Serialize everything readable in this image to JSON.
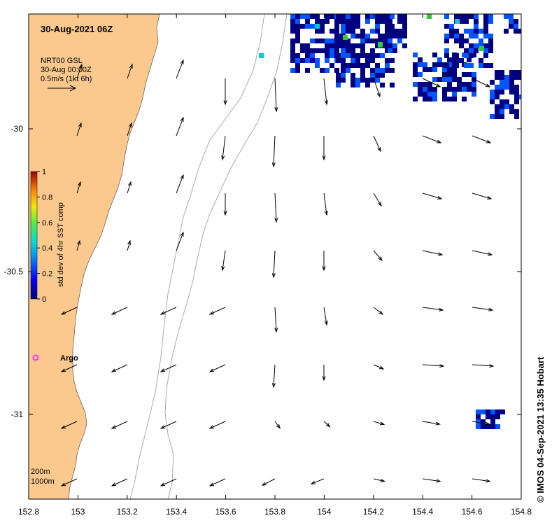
{
  "title": "30-Aug-2021 06Z",
  "product": {
    "line1": "NRT00 GSL",
    "line2": "30-Aug 00:00Z",
    "scale_label": "0.5m/s (1kt 6h)"
  },
  "colorbar": {
    "label": "std dev of 4hr SST comp",
    "ticks": [
      "1",
      "0.8",
      "0.6",
      "0.4",
      "0.2",
      "0"
    ]
  },
  "x_ticks": [
    "152.8",
    "153",
    "153.2",
    "153.4",
    "153.6",
    "153.8",
    "154",
    "154.2",
    "154.4",
    "154.6",
    "154.8"
  ],
  "y_ticks": [
    "-30",
    "-30.5",
    "-31"
  ],
  "float_label": "Argo",
  "isobaths": {
    "a": "200m",
    "b": "1000m"
  },
  "credit": "© IMOS 04-Sep-2021 13:35 Hobart",
  "colors": {
    "land": "#fbc98e",
    "argo": "#ff33ff",
    "isobath": "#aaaaaa",
    "sst_low": "#000080",
    "sst_mid": "#0055ff",
    "sst_cyan": "#00ccdd",
    "sst_green": "#33cc33"
  }
}
